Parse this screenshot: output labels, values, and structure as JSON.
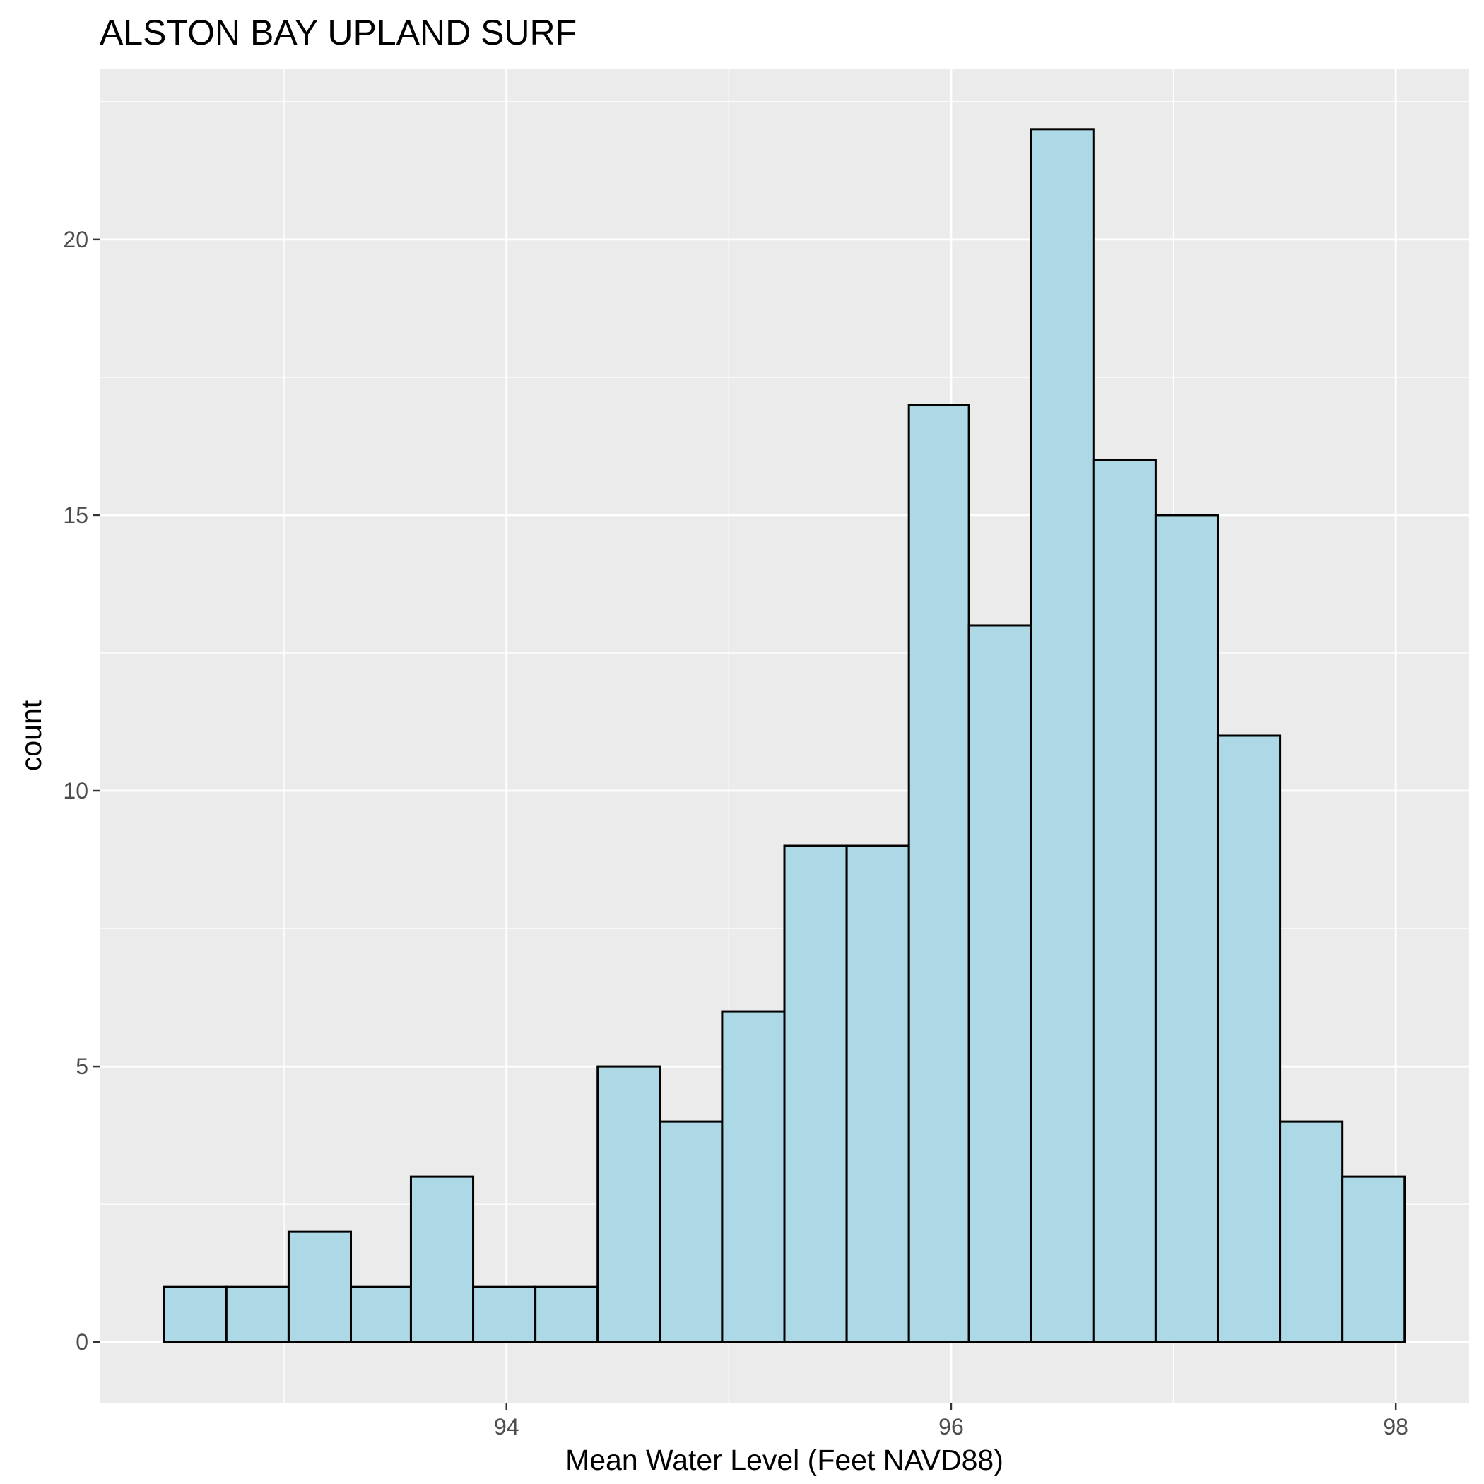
{
  "chart_data": {
    "type": "bar",
    "title": "ALSTON BAY UPLAND SURF",
    "xlabel": "Mean Water Level (Feet NAVD88)",
    "ylabel": "count",
    "bin_width": 0.279,
    "bin_start": 92.46,
    "bins": [
      {
        "x0": 92.46,
        "x1": 92.74,
        "count": 1
      },
      {
        "x0": 92.74,
        "x1": 93.02,
        "count": 1
      },
      {
        "x0": 93.02,
        "x1": 93.3,
        "count": 2
      },
      {
        "x0": 93.3,
        "x1": 93.57,
        "count": 1
      },
      {
        "x0": 93.57,
        "x1": 93.85,
        "count": 3
      },
      {
        "x0": 93.85,
        "x1": 94.13,
        "count": 1
      },
      {
        "x0": 94.13,
        "x1": 94.41,
        "count": 1
      },
      {
        "x0": 94.41,
        "x1": 94.69,
        "count": 5
      },
      {
        "x0": 94.69,
        "x1": 94.97,
        "count": 4
      },
      {
        "x0": 94.97,
        "x1": 95.25,
        "count": 6
      },
      {
        "x0": 95.25,
        "x1": 95.53,
        "count": 9
      },
      {
        "x0": 95.53,
        "x1": 95.81,
        "count": 9
      },
      {
        "x0": 95.81,
        "x1": 96.08,
        "count": 17
      },
      {
        "x0": 96.08,
        "x1": 96.36,
        "count": 13
      },
      {
        "x0": 96.36,
        "x1": 96.64,
        "count": 22
      },
      {
        "x0": 96.64,
        "x1": 96.92,
        "count": 16
      },
      {
        "x0": 96.92,
        "x1": 97.2,
        "count": 15
      },
      {
        "x0": 97.2,
        "x1": 97.48,
        "count": 11
      },
      {
        "x0": 97.48,
        "x1": 97.76,
        "count": 4
      },
      {
        "x0": 97.76,
        "x1": 98.04,
        "count": 3
      }
    ],
    "xlim": [
      92.17,
      98.33
    ],
    "ylim": [
      -1.1,
      23.1
    ],
    "x_ticks": [
      94,
      96,
      98
    ],
    "x_tick_labels": [
      "94",
      "96",
      "98"
    ],
    "y_ticks": [
      0,
      5,
      10,
      15,
      20
    ],
    "y_tick_labels": [
      "0",
      "5",
      "10",
      "15",
      "20"
    ],
    "x_minor_grid": [
      93,
      95,
      97
    ],
    "y_minor_grid": [
      2.5,
      7.5,
      12.5,
      17.5,
      22.5
    ],
    "grid": true,
    "legend": "none",
    "colors": {
      "panel_background": "#ebebeb",
      "grid_line": "#ffffff",
      "bar_fill": "#add8e6",
      "bar_outline": "#000000",
      "tick_mark": "#333333",
      "tick_label": "#4d4d4d"
    }
  }
}
